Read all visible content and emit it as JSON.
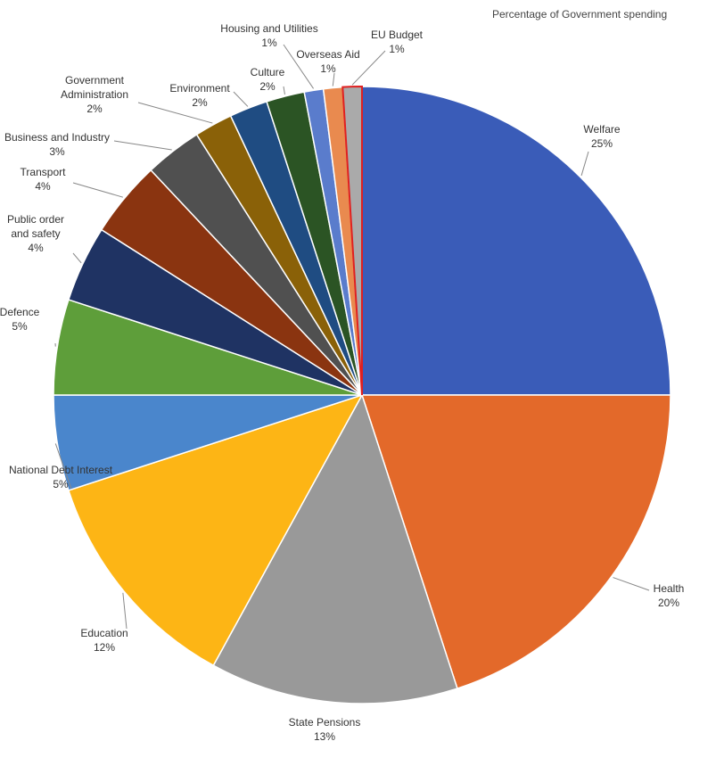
{
  "chart_data": {
    "type": "pie",
    "title": "Percentage of Government spending",
    "categories": [
      "Welfare",
      "Health",
      "State Pensions",
      "Education",
      "National Debt Interest",
      "Defence",
      "Public order and safety",
      "Transport",
      "Business and Industry",
      "Government Administration",
      "Environment",
      "Culture",
      "Housing and Utilities",
      "Overseas Aid",
      "EU Budget"
    ],
    "values": [
      25,
      20,
      13,
      12,
      5,
      5,
      4,
      4,
      3,
      2,
      2,
      2,
      1,
      1,
      1
    ],
    "value_labels": [
      "25%",
      "20%",
      "13%",
      "12%",
      "5%",
      "5%",
      "4%",
      "4%",
      "3%",
      "2%",
      "2%",
      "2%",
      "1%",
      "1%",
      "1%"
    ],
    "colors": [
      "#3a5cb8",
      "#e3692a",
      "#999999",
      "#fdb515",
      "#4a86cc",
      "#5e9e3a",
      "#1f3363",
      "#8a3410",
      "#505050",
      "#8a6108",
      "#1f4c82",
      "#2b5424",
      "#5a7ccc",
      "#e98a4f",
      "#aaaaaa"
    ]
  }
}
